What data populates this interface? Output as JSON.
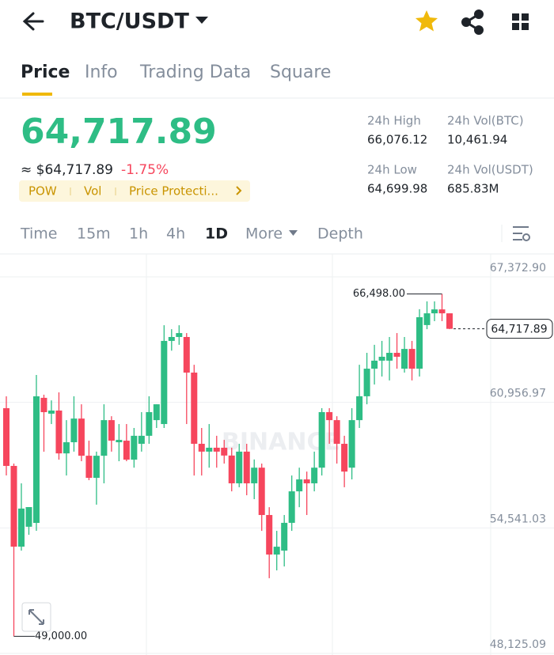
{
  "header": {
    "pair": "BTC/USDT"
  },
  "tabs": [
    "Price",
    "Info",
    "Trading Data",
    "Square"
  ],
  "price": {
    "last": "64,717.89",
    "usd": "≈ $64,717.89",
    "change": "-1.75%"
  },
  "tags": [
    "POW",
    "Vol",
    "Price Protecti..."
  ],
  "stats": [
    {
      "label": "24h High",
      "value": "66,076.12"
    },
    {
      "label": "24h Vol(BTC)",
      "value": "10,461.94"
    },
    {
      "label": "24h Low",
      "value": "64,699.98"
    },
    {
      "label": "24h Vol(USDT)",
      "value": "685.83M"
    }
  ],
  "intervals": [
    "Time",
    "15m",
    "1h",
    "4h",
    "1D",
    "More",
    "Depth"
  ],
  "chart_data": {
    "type": "candlestick",
    "watermark": "BINANCE",
    "up_color": "#2ebd85",
    "down_color": "#f6465d",
    "grid": true,
    "ylim": [
      48125.09,
      67372.9
    ],
    "yticks": [
      {
        "value": 67372.9,
        "label": "67,372.90"
      },
      {
        "value": 60956.97,
        "label": "60,956.97"
      },
      {
        "value": 54541.03,
        "label": "54,541.03"
      },
      {
        "value": 48125.09,
        "label": "48,125.09"
      }
    ],
    "open": [
      60660,
      57710,
      53583,
      54600,
      54796,
      61190,
      60380,
      60540,
      58350,
      58920,
      60130,
      58230,
      57100,
      58230,
      60050,
      58920,
      59000,
      58030,
      58840,
      59250,
      60050,
      59850,
      64100,
      64300,
      64300,
      62480,
      58840,
      58440,
      58640,
      58640,
      58240,
      56820,
      58440,
      56820,
      57620,
      55200,
      53180,
      53380,
      54800,
      56410,
      57020,
      56820,
      57620,
      60460,
      60050,
      58840,
      57620,
      60050,
      61270,
      62680,
      63090,
      63090,
      63490,
      62680,
      63690,
      62680,
      64910,
      65510,
      65710,
      65510
    ],
    "high": [
      61267,
      57830,
      56818,
      55605,
      62360,
      61350,
      61060,
      61470,
      60050,
      61270,
      60860,
      59000,
      58440,
      60860,
      60250,
      59850,
      59850,
      59650,
      60460,
      61270,
      60860,
      64900,
      64700,
      64900,
      64500,
      62880,
      59650,
      59850,
      59250,
      59040,
      58640,
      58840,
      58840,
      58040,
      57830,
      55600,
      54390,
      55200,
      57220,
      57620,
      57420,
      58440,
      60660,
      60660,
      60250,
      59250,
      60660,
      62880,
      63490,
      63900,
      64100,
      64300,
      64500,
      64300,
      64100,
      65720,
      66120,
      66120,
      66498,
      65510
    ],
    "low": [
      57223,
      49000,
      53380,
      54190,
      54392,
      58436,
      59850,
      58030,
      57220,
      58440,
      57950,
      56980,
      55730,
      56820,
      58440,
      57950,
      57950,
      57620,
      58440,
      58840,
      59650,
      59650,
      63600,
      63900,
      59850,
      57220,
      57220,
      57620,
      57620,
      57830,
      56410,
      56620,
      56210,
      56010,
      54390,
      51970,
      52370,
      52570,
      54390,
      55600,
      55200,
      56410,
      57220,
      58840,
      57830,
      56620,
      57020,
      59650,
      60860,
      61870,
      62280,
      62080,
      62680,
      62480,
      62080,
      62280,
      64700,
      65110,
      65110,
      64700
    ],
    "close": [
      57710,
      53583,
      55530,
      55605,
      61267,
      60458,
      60540,
      58350,
      58920,
      60130,
      58230,
      57100,
      58230,
      60050,
      59000,
      59040,
      58030,
      59250,
      59250,
      60460,
      60860,
      64100,
      64300,
      64500,
      62480,
      58840,
      58440,
      58640,
      58440,
      58240,
      56820,
      58440,
      56820,
      57620,
      55200,
      53180,
      53580,
      54800,
      56410,
      57020,
      56820,
      57620,
      60460,
      60050,
      58840,
      57420,
      60050,
      61270,
      62680,
      63090,
      63290,
      63490,
      63290,
      63690,
      62680,
      65310,
      65510,
      65710,
      65510,
      64717.89
    ],
    "high_label": {
      "value": 66498,
      "label": "66,498.00"
    },
    "low_label": {
      "value": 49000,
      "label": "49,000.00"
    },
    "last_label": {
      "value": 64717.89,
      "label": "64,717.89"
    }
  }
}
